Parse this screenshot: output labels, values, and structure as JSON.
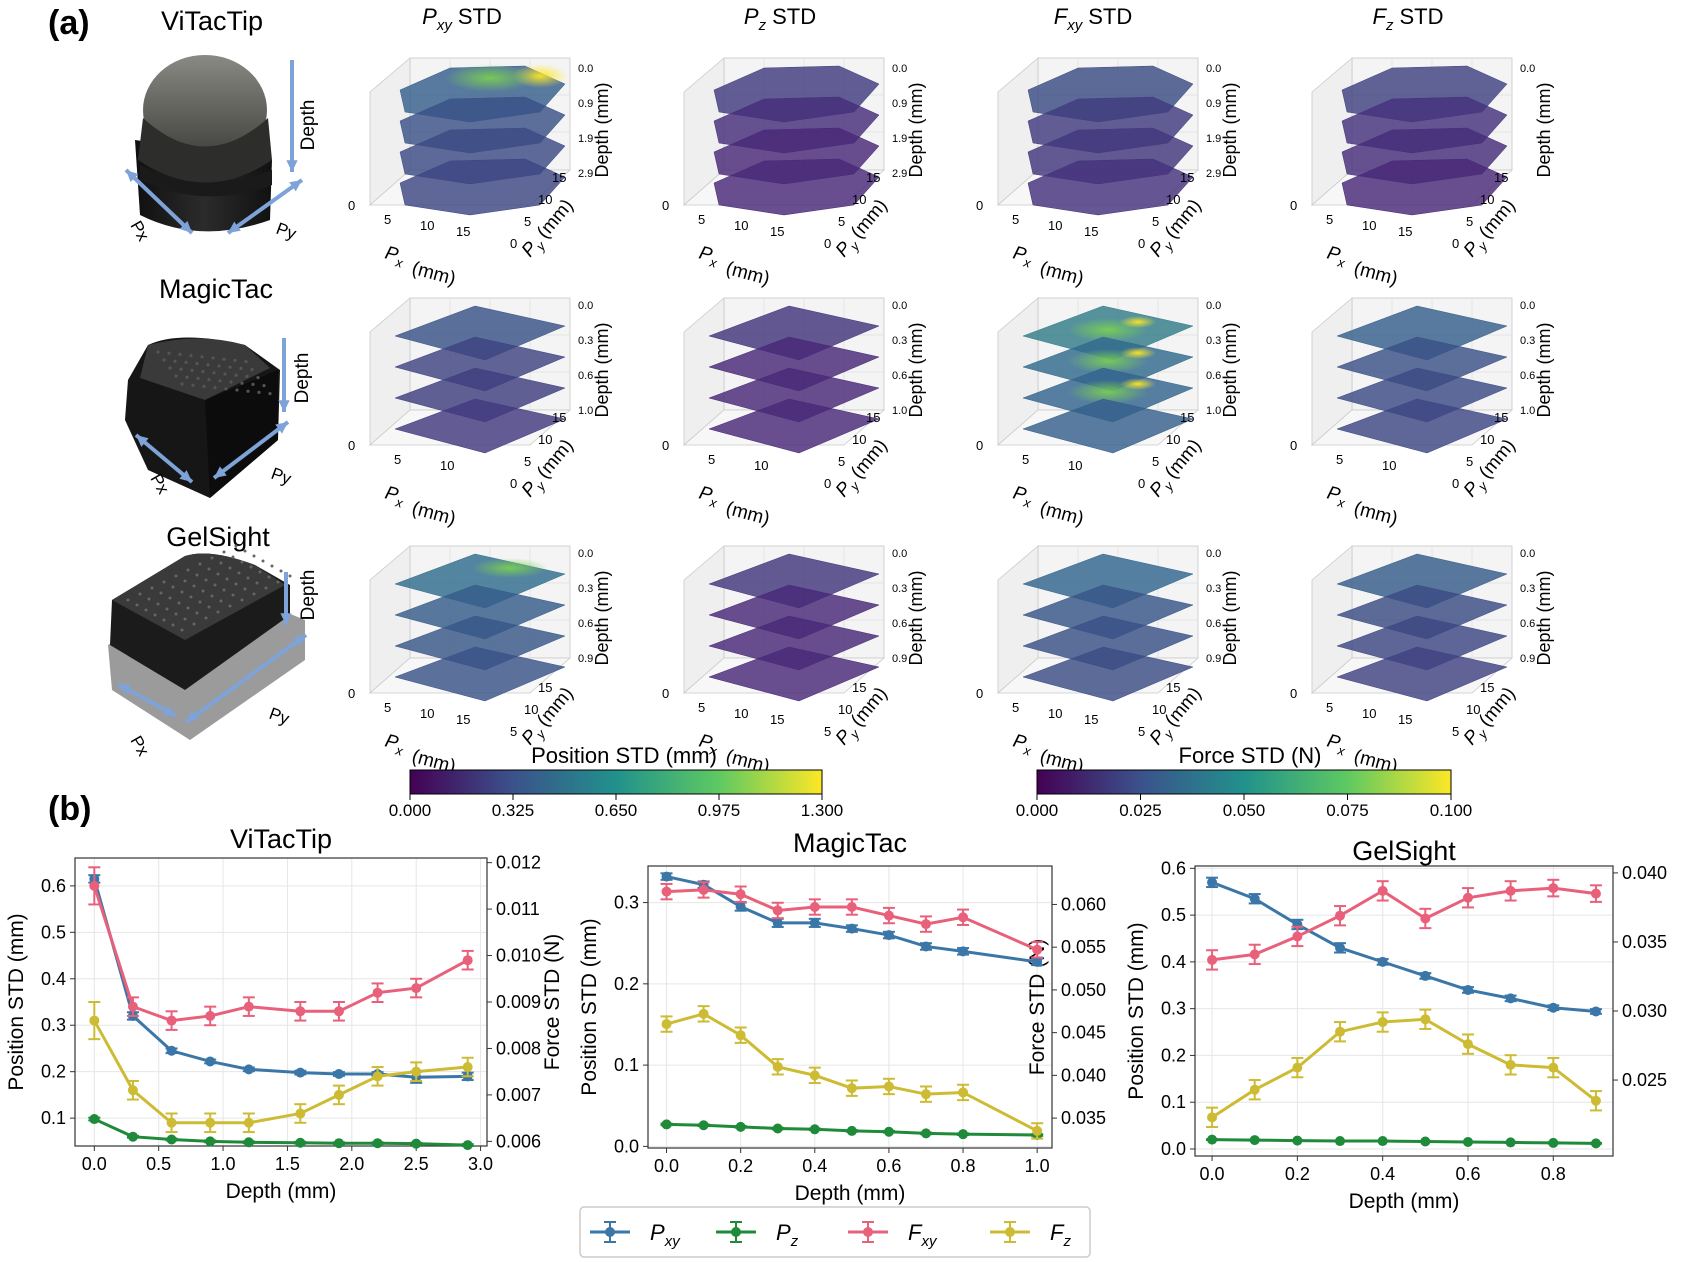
{
  "panel_labels": {
    "a": "(a)",
    "b": "(b)"
  },
  "column_titles": [
    {
      "sym": "P",
      "sub": "xy",
      "suffix": "STD"
    },
    {
      "sym": "P",
      "sub": "z",
      "suffix": "STD"
    },
    {
      "sym": "F",
      "sub": "xy",
      "suffix": "STD"
    },
    {
      "sym": "F",
      "sub": "z",
      "suffix": "STD"
    }
  ],
  "sensors": [
    {
      "name": "ViTacTip",
      "depth_ticks": [
        "0.0",
        "0.9",
        "1.9",
        "2.9"
      ],
      "px_ticks": [
        "0",
        "5",
        "10",
        "15"
      ],
      "py_ticks": [
        "0",
        "5",
        "10",
        "15"
      ],
      "arrow_depth": "Depth",
      "arrow_px": "Px",
      "arrow_py": "Py"
    },
    {
      "name": "MagicTac",
      "depth_ticks": [
        "0.0",
        "0.3",
        "0.6",
        "1.0"
      ],
      "px_ticks": [
        "0",
        "5",
        "10"
      ],
      "py_ticks": [
        "0",
        "5",
        "10",
        "15"
      ],
      "arrow_depth": "Depth",
      "arrow_px": "Px",
      "arrow_py": "Py"
    },
    {
      "name": "GelSight",
      "depth_ticks": [
        "0.0",
        "0.3",
        "0.6",
        "0.9"
      ],
      "px_ticks": [
        "0",
        "5",
        "10",
        "15"
      ],
      "py_ticks": [
        "5",
        "10",
        "15"
      ],
      "arrow_depth": "Depth",
      "arrow_px": "Px",
      "arrow_py": "Py"
    }
  ],
  "axis3d": {
    "depth_label": "Depth (mm)",
    "px_label": "Px (mm)",
    "py_label": "Py (mm)"
  },
  "colorbars": [
    {
      "label": "Position STD (mm)",
      "ticks": [
        "0.000",
        "0.325",
        "0.650",
        "0.975",
        "1.300"
      ]
    },
    {
      "label": "Force STD (N)",
      "ticks": [
        "0.000",
        "0.025",
        "0.050",
        "0.075",
        "0.100"
      ]
    }
  ],
  "colors": {
    "pxy": "#3a77a8",
    "pz": "#1e8a3a",
    "fxy": "#e8607a",
    "fz": "#cdbb33",
    "viridis": [
      "#440154",
      "#3b528b",
      "#21918c",
      "#5ec962",
      "#fde725"
    ],
    "purple": "#5b3f8c"
  },
  "legend": [
    {
      "key": "pxy",
      "sym": "P",
      "sub": "xy"
    },
    {
      "key": "pz",
      "sym": "P",
      "sub": "z"
    },
    {
      "key": "fxy",
      "sym": "F",
      "sub": "xy"
    },
    {
      "key": "fz",
      "sym": "F",
      "sub": "z"
    }
  ],
  "chart_data": [
    {
      "type": "line",
      "title": "ViTacTip",
      "xlabel": "Depth (mm)",
      "ylabel": "Position STD (mm)",
      "y2label": "Force STD (N)",
      "x": [
        0,
        0.3,
        0.6,
        0.9,
        1.2,
        1.6,
        1.9,
        2.2,
        2.5,
        2.9
      ],
      "xlim": [
        -0.15,
        3.05
      ],
      "xticks": [
        0.0,
        0.5,
        1.0,
        1.5,
        2.0,
        2.5,
        3.0
      ],
      "ylim": [
        0.04,
        0.66
      ],
      "yticks": [
        0.1,
        0.2,
        0.3,
        0.4,
        0.5,
        0.6
      ],
      "y2lim": [
        0.0059,
        0.0121
      ],
      "y2ticks": [
        0.006,
        0.007,
        0.008,
        0.009,
        0.01,
        0.011,
        0.012
      ],
      "series": [
        {
          "key": "pxy",
          "axis": "left",
          "values": [
            0.615,
            0.32,
            0.245,
            0.222,
            0.205,
            0.198,
            0.195,
            0.195,
            0.188,
            0.19
          ],
          "err": [
            0.008,
            0.008,
            0.005,
            0.004,
            0.004,
            0.004,
            0.004,
            0.004,
            0.012,
            0.008
          ]
        },
        {
          "key": "pz",
          "axis": "left",
          "values": [
            0.098,
            0.06,
            0.054,
            0.05,
            0.048,
            0.047,
            0.046,
            0.046,
            0.045,
            0.042
          ],
          "err": [
            0.003,
            0.002,
            0.002,
            0.002,
            0.002,
            0.002,
            0.002,
            0.002,
            0.002,
            0.002
          ]
        },
        {
          "key": "fxy",
          "axis": "right",
          "values": [
            0.0115,
            0.0089,
            0.0086,
            0.0087,
            0.0089,
            0.0088,
            0.0088,
            0.0092,
            0.0093,
            0.0099
          ],
          "err": [
            0.0004,
            0.0002,
            0.0002,
            0.0002,
            0.0002,
            0.0002,
            0.0002,
            0.0002,
            0.0002,
            0.0002
          ]
        },
        {
          "key": "fz",
          "axis": "right",
          "values": [
            0.0086,
            0.0071,
            0.0064,
            0.0064,
            0.0064,
            0.0066,
            0.007,
            0.0074,
            0.0075,
            0.0076
          ],
          "err": [
            0.0004,
            0.0002,
            0.0002,
            0.0002,
            0.0002,
            0.0002,
            0.0002,
            0.0002,
            0.0002,
            0.0002
          ]
        }
      ]
    },
    {
      "type": "line",
      "title": "MagicTac",
      "xlabel": "Depth (mm)",
      "ylabel": "Position STD (mm)",
      "y2label": "Force STD (N)",
      "x": [
        0,
        0.1,
        0.2,
        0.3,
        0.4,
        0.5,
        0.6,
        0.7,
        0.8,
        1.0
      ],
      "xlim": [
        -0.05,
        1.04
      ],
      "xticks": [
        0.0,
        0.2,
        0.4,
        0.6,
        0.8,
        1.0
      ],
      "ylim": [
        -0.002,
        0.345
      ],
      "yticks": [
        0.0,
        0.1,
        0.2,
        0.3
      ],
      "y2lim": [
        0.0315,
        0.0645
      ],
      "y2ticks": [
        0.035,
        0.04,
        0.045,
        0.05,
        0.055,
        0.06
      ],
      "series": [
        {
          "key": "pxy",
          "axis": "left",
          "values": [
            0.332,
            0.322,
            0.295,
            0.275,
            0.275,
            0.268,
            0.26,
            0.246,
            0.24,
            0.227
          ],
          "err": [
            0.004,
            0.004,
            0.005,
            0.005,
            0.005,
            0.004,
            0.004,
            0.004,
            0.004,
            0.004
          ]
        },
        {
          "key": "pz",
          "axis": "left",
          "values": [
            0.027,
            0.026,
            0.024,
            0.022,
            0.021,
            0.019,
            0.018,
            0.016,
            0.015,
            0.014
          ],
          "err": [
            0.001,
            0.001,
            0.001,
            0.001,
            0.001,
            0.001,
            0.001,
            0.001,
            0.001,
            0.001
          ]
        },
        {
          "key": "fxy",
          "axis": "right",
          "values": [
            0.0615,
            0.0617,
            0.0612,
            0.0593,
            0.0597,
            0.0597,
            0.0587,
            0.0577,
            0.0585,
            0.0547
          ],
          "err": [
            0.0009,
            0.0009,
            0.0009,
            0.0009,
            0.0009,
            0.0009,
            0.0009,
            0.0009,
            0.0009,
            0.0009
          ]
        },
        {
          "key": "fz",
          "axis": "right",
          "values": [
            0.046,
            0.0472,
            0.0447,
            0.041,
            0.04,
            0.0385,
            0.0387,
            0.0378,
            0.038,
            0.0335
          ],
          "err": [
            0.0009,
            0.0009,
            0.0009,
            0.0009,
            0.0009,
            0.0009,
            0.0009,
            0.0009,
            0.0009,
            0.0009
          ]
        }
      ]
    },
    {
      "type": "line",
      "title": "GelSight",
      "xlabel": "Depth (mm)",
      "ylabel": "Position STD (mm)",
      "y2label": "Force STD (N)",
      "x": [
        0,
        0.1,
        0.2,
        0.3,
        0.4,
        0.5,
        0.6,
        0.7,
        0.8,
        0.9
      ],
      "xlim": [
        -0.04,
        0.94
      ],
      "xticks": [
        0.0,
        0.2,
        0.4,
        0.6,
        0.8
      ],
      "ylim": [
        -0.015,
        0.605
      ],
      "yticks": [
        0.0,
        0.1,
        0.2,
        0.3,
        0.4,
        0.5,
        0.6
      ],
      "y2lim": [
        0.0195,
        0.0405
      ],
      "y2ticks": [
        0.025,
        0.03,
        0.035,
        0.04
      ],
      "series": [
        {
          "key": "pxy",
          "axis": "left",
          "values": [
            0.57,
            0.535,
            0.48,
            0.43,
            0.4,
            0.37,
            0.34,
            0.322,
            0.302,
            0.294
          ],
          "err": [
            0.01,
            0.01,
            0.01,
            0.01,
            0.006,
            0.006,
            0.006,
            0.006,
            0.005,
            0.005
          ]
        },
        {
          "key": "pz",
          "axis": "left",
          "values": [
            0.02,
            0.019,
            0.018,
            0.017,
            0.017,
            0.016,
            0.015,
            0.014,
            0.013,
            0.012
          ],
          "err": [
            0.001,
            0.001,
            0.001,
            0.001,
            0.001,
            0.001,
            0.001,
            0.001,
            0.001,
            0.001
          ]
        },
        {
          "key": "fxy",
          "axis": "right",
          "values": [
            0.0337,
            0.0341,
            0.0354,
            0.0369,
            0.0387,
            0.0367,
            0.0382,
            0.0387,
            0.0389,
            0.0385
          ],
          "err": [
            0.0007,
            0.0007,
            0.0007,
            0.0007,
            0.0007,
            0.0007,
            0.0007,
            0.0007,
            0.0006,
            0.0006
          ]
        },
        {
          "key": "fz",
          "axis": "right",
          "values": [
            0.0223,
            0.0243,
            0.0259,
            0.0285,
            0.0292,
            0.0294,
            0.0276,
            0.0261,
            0.0259,
            0.0235
          ],
          "err": [
            0.0007,
            0.0007,
            0.0007,
            0.0007,
            0.0007,
            0.0007,
            0.0007,
            0.0007,
            0.0007,
            0.0007
          ]
        }
      ]
    }
  ]
}
